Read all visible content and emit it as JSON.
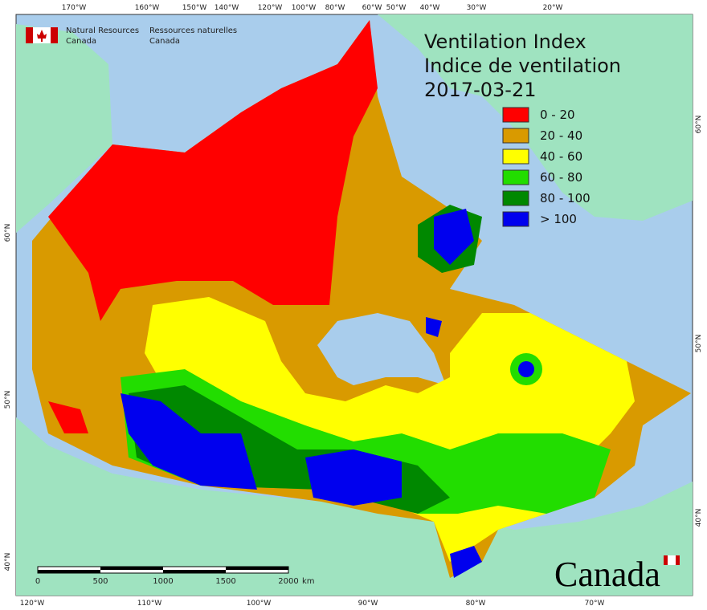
{
  "header": {
    "department_en": [
      "Natural Resources",
      "Canada"
    ],
    "department_fr": [
      "Ressources naturelles",
      "Canada"
    ]
  },
  "map": {
    "title": [
      "Ventilation Index",
      "Indice de ventilation",
      "2017-03-21"
    ],
    "legend": [
      {
        "label": "0 - 20",
        "color": "#ff0000"
      },
      {
        "label": "20 - 40",
        "color": "#d99a00"
      },
      {
        "label": "40 - 60",
        "color": "#ffff00"
      },
      {
        "label": "60 - 80",
        "color": "#22dd00"
      },
      {
        "label": "80 - 100",
        "color": "#008800"
      },
      {
        "label": "> 100",
        "color": "#0000ee"
      }
    ],
    "graticule_top": [
      "170°W",
      "160°W",
      "150°W",
      "140°W",
      "120°W",
      "100°W",
      "80°W",
      "60°W",
      "50°W",
      "40°W",
      "30°W",
      "20°W"
    ],
    "graticule_bottom": [
      "120°W",
      "110°W",
      "100°W",
      "90°W",
      "80°W",
      "70°W"
    ],
    "graticule_left": [
      "60°N",
      "50°N",
      "40°N"
    ],
    "graticule_right": [
      "60°N",
      "50°N",
      "40°N"
    ],
    "scale_labels": [
      "0",
      "500",
      "1000",
      "1500",
      "2000"
    ],
    "scale_unit": "km",
    "wordmark": "Canada"
  }
}
